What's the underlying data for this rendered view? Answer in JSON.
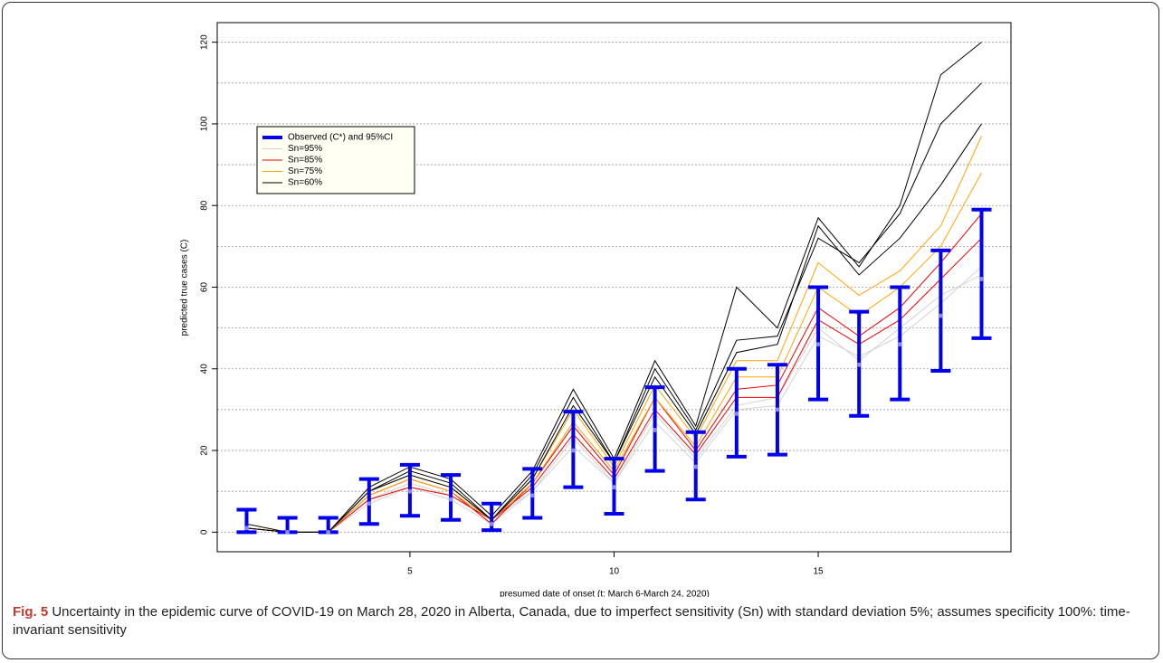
{
  "chart_data": {
    "type": "line",
    "xlabel": "presumed date of onset (t: March 6-March 24, 2020)",
    "ylabel": "predicted true cases (C)",
    "x": [
      1,
      2,
      3,
      4,
      5,
      6,
      7,
      8,
      9,
      10,
      11,
      12,
      13,
      14,
      15,
      16,
      17,
      18,
      19
    ],
    "xlim": [
      0.28,
      19.72
    ],
    "xticks": [
      5,
      10,
      15
    ],
    "ylim": [
      -4.8,
      124.8
    ],
    "yticks": [
      0,
      20,
      40,
      60,
      80,
      100,
      120
    ],
    "ygrid": [
      0,
      10,
      20,
      30,
      40,
      50,
      60,
      70,
      80,
      90,
      100,
      110,
      120
    ],
    "legend": "upper left",
    "series": [
      {
        "name": "Observed (C*) and 95%CI",
        "color": "#0000ee",
        "values": [
          1,
          0,
          0,
          7,
          10,
          8,
          2,
          9,
          20,
          11,
          25,
          16,
          29,
          30,
          46,
          41,
          46,
          53,
          62
        ],
        "lower": [
          0,
          0,
          0,
          2,
          4,
          3,
          0.5,
          3.5,
          11,
          4.5,
          15,
          8,
          18.5,
          19,
          32.5,
          28.5,
          32.5,
          39.5,
          47.5
        ],
        "upper": [
          5.5,
          3.5,
          3.5,
          13,
          16.5,
          14,
          7,
          15.5,
          29.5,
          18,
          35.5,
          24.5,
          40,
          41,
          60,
          54,
          60,
          69,
          79
        ]
      },
      {
        "name": "Sn=95%",
        "color": "#d3d3d3",
        "runs": [
          [
            1,
            0,
            0,
            7,
            11,
            8,
            2,
            10,
            21,
            12,
            27,
            17,
            30,
            31,
            48,
            43,
            48,
            56,
            65
          ],
          [
            1,
            0,
            0,
            8,
            12,
            9,
            3,
            10,
            23,
            12,
            29,
            18,
            31,
            33,
            50,
            42,
            50,
            58,
            63
          ]
        ]
      },
      {
        "name": "Sn=85%",
        "color": "#ee0000",
        "runs": [
          [
            1,
            0,
            0,
            8,
            11,
            9,
            3,
            11,
            24,
            13,
            30,
            19,
            33,
            33,
            52,
            46,
            52,
            62,
            72
          ],
          [
            1,
            0,
            0,
            9,
            13,
            10,
            2,
            12,
            26,
            14,
            33,
            20,
            35,
            36,
            55,
            48,
            55,
            66,
            78
          ]
        ]
      },
      {
        "name": "Sn=75%",
        "color": "#ffa500",
        "runs": [
          [
            2,
            0,
            0,
            9,
            13,
            10,
            3,
            12,
            27,
            15,
            33,
            21,
            38,
            38,
            60,
            53,
            60,
            70,
            88
          ],
          [
            1,
            0,
            0,
            10,
            14,
            11,
            3,
            13,
            30,
            16,
            36,
            23,
            42,
            42,
            66,
            58,
            64,
            75,
            97
          ]
        ]
      },
      {
        "name": "Sn=60%",
        "color": "#000000",
        "runs": [
          [
            1,
            0,
            0,
            10,
            15,
            12,
            3,
            14,
            33,
            17,
            40,
            25,
            47,
            48,
            72,
            66,
            78,
            100,
            110
          ],
          [
            2,
            0,
            0,
            11,
            16,
            13,
            4,
            15,
            35,
            18,
            42,
            26,
            60,
            50,
            77,
            65,
            80,
            112,
            120
          ],
          [
            1,
            0,
            0,
            10,
            14,
            11,
            3,
            13,
            31,
            17,
            38,
            24,
            44,
            46,
            75,
            63,
            72,
            85,
            100
          ]
        ]
      }
    ]
  },
  "caption": {
    "label": "Fig. 5",
    "text": "Uncertainty in the epidemic curve of COVID-19 on March 28, 2020 in Alberta, Canada, due to imperfect sensitivity (Sn) with standard deviation 5%; assumes specificity 100%: time-invariant sensitivity"
  }
}
